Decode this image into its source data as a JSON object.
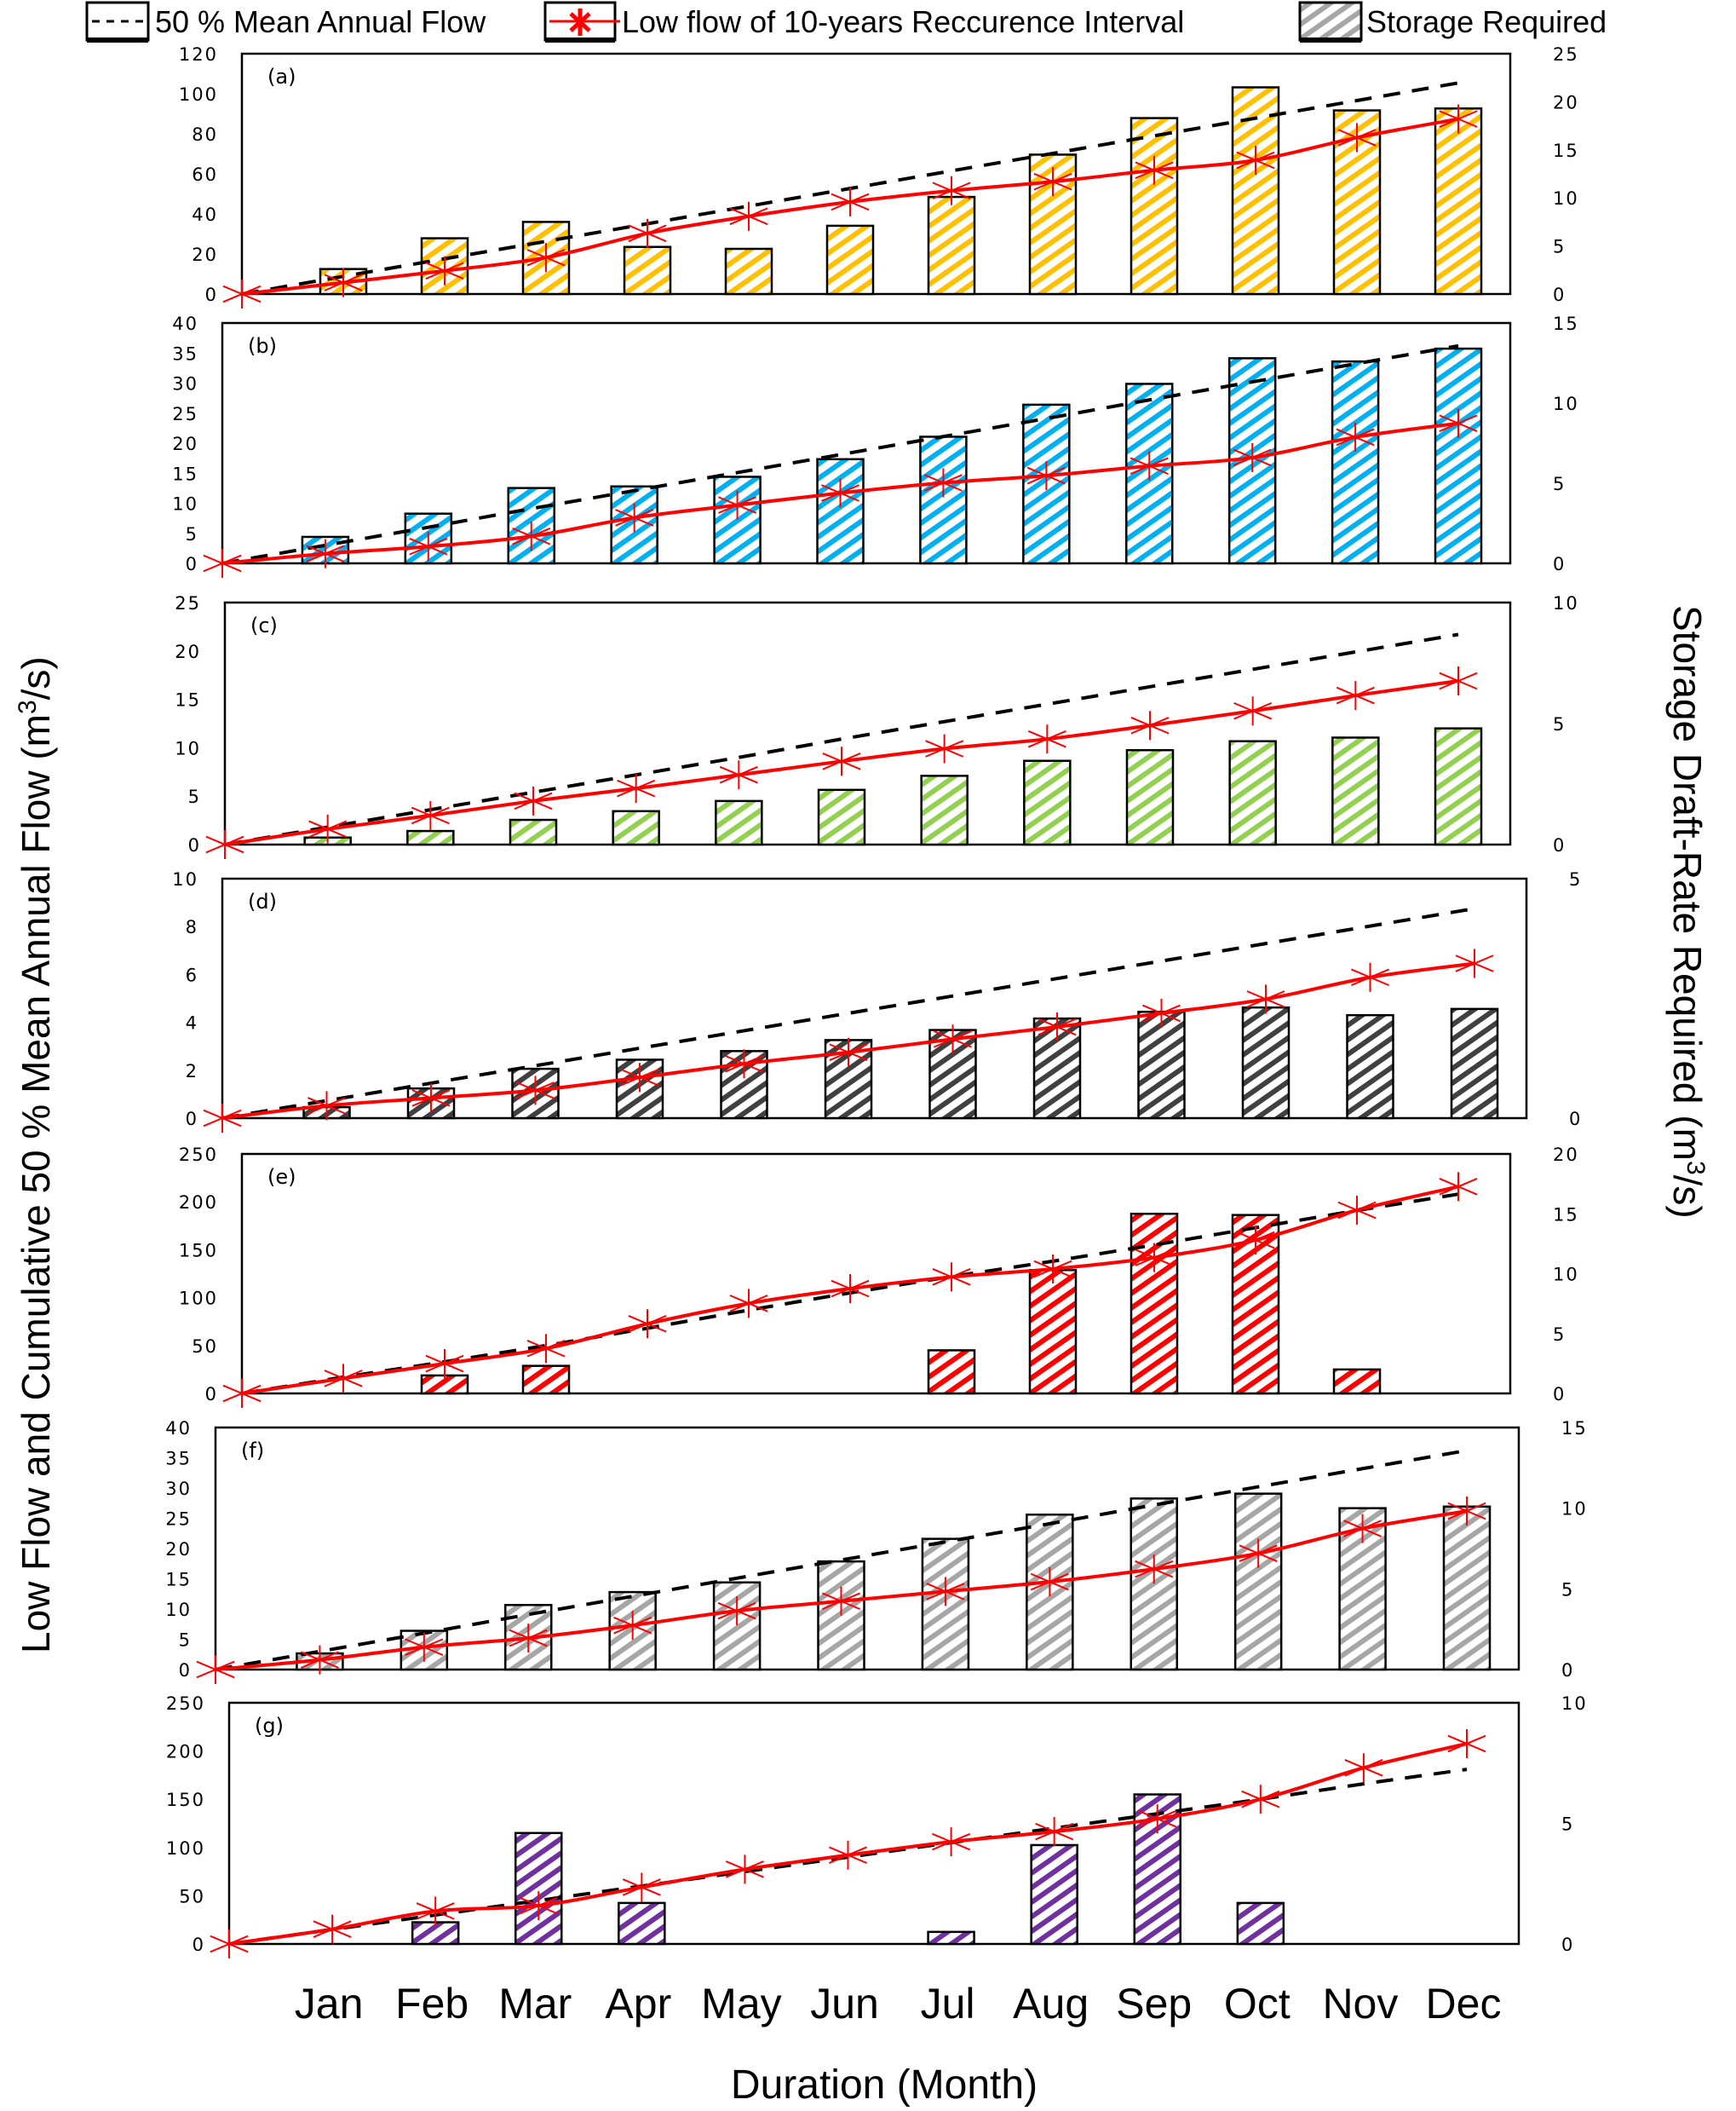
{
  "legend": {
    "maf_label": "50 % Mean Annual Flow",
    "lowflow_label": "Low flow of 10-years Reccurence Interval",
    "storage_label": "Storage Required"
  },
  "axes": {
    "x_title": "Duration (Month)",
    "y_left_title": "Low Flow and Cumulative 50 % Mean Annual Flow (m",
    "y_left_title_suffix": "/s)",
    "y_right_title": "Storage Draft-Rate Required (m",
    "y_right_title_suffix": "/s)",
    "superscript": "3"
  },
  "colors": {
    "maf_line": "#000000",
    "lowflow_line": "#ff0000",
    "legend_hatch": "#a6a6a6"
  },
  "chart_data": [
    {
      "type": "bar+line",
      "panel": "(a)",
      "categories": [
        "",
        "Jan",
        "Feb",
        "Mar",
        "Apr",
        "May",
        "Jun",
        "Jul",
        "Aug",
        "Sep",
        "Oct",
        "Nov",
        "Dec"
      ],
      "ylim_left": [
        0,
        120
      ],
      "yticks_left": [
        0,
        20,
        40,
        60,
        80,
        100,
        120
      ],
      "ylim_right": [
        0,
        25
      ],
      "yticks_right": [
        0,
        5,
        10,
        15,
        20,
        25
      ],
      "bar_color": "#ffc000",
      "series": [
        {
          "name": "50 % Mean Annual Flow",
          "axis": "left",
          "style": "dashed",
          "values": [
            0,
            8.8,
            17.6,
            26.3,
            35.1,
            43.9,
            52.7,
            61.5,
            70.2,
            79.0,
            87.8,
            96.6,
            105.4
          ]
        },
        {
          "name": "Low flow of 10-years Reccurence Interval",
          "axis": "left",
          "style": "line-star",
          "values": [
            0,
            5.7,
            11.6,
            18.2,
            30.3,
            38.8,
            46.0,
            51.6,
            56.1,
            61.8,
            66.8,
            78.1,
            87.4
          ]
        },
        {
          "name": "Storage Required",
          "axis": "right",
          "style": "bar",
          "values": [
            null,
            2.6,
            5.8,
            7.5,
            4.9,
            4.7,
            7.1,
            10.1,
            14.5,
            18.3,
            21.5,
            19.1,
            19.3
          ]
        }
      ]
    },
    {
      "type": "bar+line",
      "panel": "(b)",
      "categories": [
        "",
        "Jan",
        "Feb",
        "Mar",
        "Apr",
        "May",
        "Jun",
        "Jul",
        "Aug",
        "Sep",
        "Oct",
        "Nov",
        "Dec"
      ],
      "ylim_left": [
        0,
        40
      ],
      "yticks_left": [
        0,
        5,
        10,
        15,
        20,
        25,
        30,
        35,
        40
      ],
      "ylim_right": [
        0,
        15
      ],
      "yticks_right": [
        0,
        5,
        10,
        15
      ],
      "bar_color": "#00b0f0",
      "series": [
        {
          "name": "50 % Mean Annual Flow",
          "axis": "left",
          "style": "dashed",
          "values": [
            0,
            3.0,
            6.0,
            9.1,
            12.1,
            15.1,
            18.1,
            21.1,
            24.1,
            27.2,
            30.2,
            33.2,
            36.2
          ]
        },
        {
          "name": "Low flow of 10-years Reccurence Interval",
          "axis": "left",
          "style": "line-star",
          "values": [
            0,
            1.6,
            2.8,
            4.5,
            7.6,
            9.7,
            11.7,
            13.4,
            14.6,
            16.2,
            17.6,
            21.0,
            23.3
          ]
        },
        {
          "name": "Storage Required",
          "axis": "right",
          "style": "bar",
          "values": [
            null,
            1.65,
            3.1,
            4.7,
            4.8,
            5.4,
            6.5,
            7.9,
            9.9,
            11.2,
            12.8,
            12.6,
            13.4
          ]
        }
      ]
    },
    {
      "type": "bar+line",
      "panel": "(c)",
      "categories": [
        "",
        "Jan",
        "Feb",
        "Mar",
        "Apr",
        "May",
        "Jun",
        "Jul",
        "Aug",
        "Sep",
        "Oct",
        "Nov",
        "Dec"
      ],
      "ylim_left": [
        0,
        25
      ],
      "yticks_left": [
        0,
        5,
        10,
        15,
        20,
        25
      ],
      "ylim_right": [
        0,
        10
      ],
      "yticks_right": [
        0,
        5,
        10
      ],
      "bar_color": "#92d050",
      "series": [
        {
          "name": "50 % Mean Annual Flow",
          "axis": "left",
          "style": "dashed",
          "values": [
            0,
            1.8,
            3.6,
            5.4,
            7.2,
            9.0,
            10.9,
            12.7,
            14.5,
            16.3,
            18.1,
            19.9,
            21.7
          ]
        },
        {
          "name": "Low flow of 10-years Reccurence Interval",
          "axis": "left",
          "style": "line-star",
          "values": [
            0,
            1.6,
            3.0,
            4.5,
            5.8,
            7.2,
            8.6,
            9.9,
            10.9,
            12.3,
            13.8,
            15.4,
            16.9
          ]
        },
        {
          "name": "Storage Required",
          "axis": "right",
          "style": "bar",
          "values": [
            null,
            0.29,
            0.56,
            1.02,
            1.38,
            1.8,
            2.26,
            2.84,
            3.46,
            3.9,
            4.27,
            4.42,
            4.8
          ]
        }
      ]
    },
    {
      "type": "bar+line",
      "panel": "(d)",
      "categories": [
        "",
        "Jan",
        "Feb",
        "Mar",
        "Apr",
        "May",
        "Jun",
        "Jul",
        "Aug",
        "Sep",
        "Oct",
        "Nov",
        "Dec"
      ],
      "ylim_left": [
        0,
        10
      ],
      "yticks_left": [
        0,
        2,
        4,
        6,
        8,
        10
      ],
      "ylim_right": [
        0,
        5
      ],
      "yticks_right": [
        0,
        5
      ],
      "bar_color": "#404040",
      "series": [
        {
          "name": "50 % Mean Annual Flow",
          "axis": "left",
          "style": "dashed",
          "values": [
            0,
            0.73,
            1.46,
            2.19,
            2.92,
            3.65,
            4.38,
            5.1,
            5.83,
            6.56,
            7.29,
            8.02,
            8.75
          ]
        },
        {
          "name": "Low flow of 10-years Reccurence Interval",
          "axis": "left",
          "style": "line-star",
          "values": [
            0,
            0.52,
            0.84,
            1.16,
            1.7,
            2.27,
            2.75,
            3.3,
            3.81,
            4.38,
            4.97,
            5.88,
            6.46
          ]
        },
        {
          "name": "Storage Required",
          "axis": "right",
          "style": "bar",
          "values": [
            null,
            0.23,
            0.62,
            1.03,
            1.22,
            1.4,
            1.63,
            1.84,
            2.08,
            2.22,
            2.31,
            2.15,
            2.28
          ]
        }
      ]
    },
    {
      "type": "bar+line",
      "panel": "(e)",
      "categories": [
        "",
        "Jan",
        "Feb",
        "Mar",
        "Apr",
        "May",
        "Jun",
        "Jul",
        "Aug",
        "Sep",
        "Oct",
        "Nov",
        "Dec"
      ],
      "ylim_left": [
        0,
        250
      ],
      "yticks_left": [
        0,
        50,
        100,
        150,
        200,
        250
      ],
      "ylim_right": [
        0,
        20
      ],
      "yticks_right": [
        0,
        5,
        10,
        15,
        20
      ],
      "bar_color": "#ff0000",
      "series": [
        {
          "name": "50 % Mean Annual Flow",
          "axis": "left",
          "style": "dashed",
          "values": [
            0,
            17,
            33,
            50,
            68,
            87,
            105,
            122,
            138,
            155,
            173,
            191,
            208
          ]
        },
        {
          "name": "Low flow of 10-years Reccurence Interval",
          "axis": "left",
          "style": "line-star",
          "values": [
            0,
            15.7,
            31.1,
            46.9,
            72.7,
            94.0,
            109.4,
            121.6,
            129.9,
            141.8,
            160.1,
            191.3,
            215.9
          ]
        },
        {
          "name": "Storage Required",
          "axis": "right",
          "style": "bar",
          "values": [
            null,
            null,
            1.5,
            2.3,
            null,
            null,
            null,
            3.6,
            10.3,
            15.0,
            14.9,
            2.0,
            null
          ]
        }
      ]
    },
    {
      "type": "bar+line",
      "panel": "(f)",
      "categories": [
        "",
        "Jan",
        "Feb",
        "Mar",
        "Apr",
        "May",
        "Jun",
        "Jul",
        "Aug",
        "Sep",
        "Oct",
        "Nov",
        "Dec"
      ],
      "ylim_left": [
        0,
        40
      ],
      "yticks_left": [
        0,
        5,
        10,
        15,
        20,
        25,
        30,
        35,
        40
      ],
      "ylim_right": [
        0,
        15
      ],
      "yticks_right": [
        0,
        5,
        10,
        15
      ],
      "bar_color": "#a6a6a6",
      "series": [
        {
          "name": "50 % Mean Annual Flow",
          "axis": "left",
          "style": "dashed",
          "values": [
            0,
            3.0,
            6.0,
            9.1,
            12.1,
            15.1,
            18.1,
            21.1,
            24.1,
            27.2,
            30.2,
            33.2,
            36.2
          ]
        },
        {
          "name": "Low flow of 10-years Reccurence Interval",
          "axis": "left",
          "style": "line-star",
          "values": [
            0,
            1.6,
            3.7,
            5.2,
            7.3,
            9.7,
            11.3,
            12.9,
            14.5,
            16.6,
            19.2,
            23.3,
            26.2
          ]
        },
        {
          "name": "Storage Required",
          "axis": "right",
          "style": "bar",
          "values": [
            null,
            1.0,
            2.4,
            4.0,
            4.8,
            5.4,
            6.7,
            8.1,
            9.6,
            10.6,
            10.9,
            10.0,
            10.1
          ]
        }
      ]
    },
    {
      "type": "bar+line",
      "panel": "(g)",
      "categories": [
        "",
        "Jan",
        "Feb",
        "Mar",
        "Apr",
        "May",
        "Jun",
        "Jul",
        "Aug",
        "Sep",
        "Oct",
        "Nov",
        "Dec"
      ],
      "ylim_left": [
        0,
        250
      ],
      "yticks_left": [
        0,
        50,
        100,
        150,
        200,
        250
      ],
      "ylim_right": [
        0,
        10
      ],
      "yticks_right": [
        0,
        5,
        10
      ],
      "bar_color": "#7030a0",
      "series": [
        {
          "name": "50 % Mean Annual Flow",
          "axis": "left",
          "style": "dashed",
          "values": [
            0,
            15,
            30,
            45,
            60,
            75,
            90,
            105,
            120,
            135,
            150,
            166,
            181
          ]
        },
        {
          "name": "Low flow of 10-years Reccurence Interval",
          "axis": "left",
          "style": "line-star",
          "values": [
            0,
            15.3,
            34.1,
            39.7,
            58.8,
            77.4,
            92.1,
            105.9,
            116.5,
            129.7,
            150.0,
            182.6,
            207.6
          ]
        },
        {
          "name": "Storage Required",
          "axis": "right",
          "style": "bar",
          "values": [
            null,
            null,
            0.9,
            4.6,
            1.7,
            null,
            null,
            0.5,
            4.1,
            6.2,
            1.7,
            null,
            null
          ]
        }
      ]
    }
  ],
  "months": [
    "Jan",
    "Feb",
    "Mar",
    "Apr",
    "May",
    "Jun",
    "Jul",
    "Aug",
    "Sep",
    "Oct",
    "Nov",
    "Dec"
  ]
}
